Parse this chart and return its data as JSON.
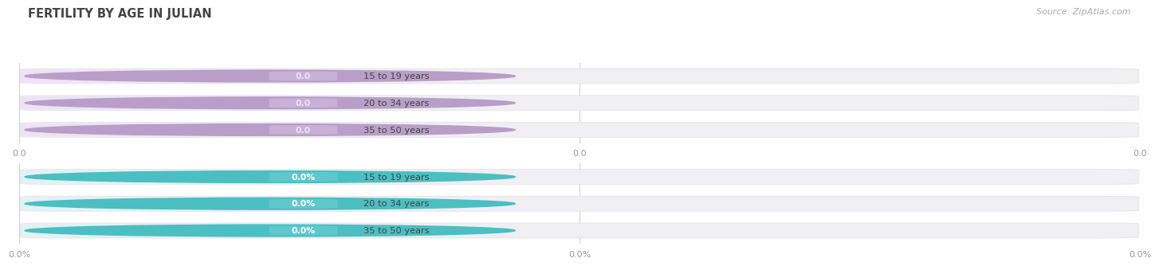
{
  "title": "FERTILITY BY AGE IN JULIAN",
  "source": "Source: ZipAtlas.com",
  "group1_labels": [
    "15 to 19 years",
    "20 to 34 years",
    "35 to 50 years"
  ],
  "group2_labels": [
    "15 to 19 years",
    "20 to 34 years",
    "35 to 50 years"
  ],
  "group1_values": [
    0.0,
    0.0,
    0.0
  ],
  "group2_values": [
    0.0,
    0.0,
    0.0
  ],
  "group1_value_labels": [
    "0.0",
    "0.0",
    "0.0"
  ],
  "group2_value_labels": [
    "0.0%",
    "0.0%",
    "0.0%"
  ],
  "circle_color_1": "#b89ec8",
  "label_bg_1": "#ede3f4",
  "value_bg_1": "#c9b0d6",
  "value_text_1": "#ede3f4",
  "circle_color_2": "#4bbfc2",
  "label_bg_2": "#e0f3f4",
  "value_bg_2": "#5ec8cb",
  "value_text_2": "#ffffff",
  "bar_bg": "#f0eff2",
  "bar_bg_border": "#e4e2e8",
  "grid_color": "#d0cdd6",
  "axis_color": "#999999",
  "title_color": "#444444",
  "source_color": "#aaaaaa",
  "bg_color": "#ffffff",
  "xticks_group1": [
    "0.0",
    "0.0",
    "0.0"
  ],
  "xticks_group2": [
    "0.0%",
    "0.0%",
    "0.0%"
  ]
}
